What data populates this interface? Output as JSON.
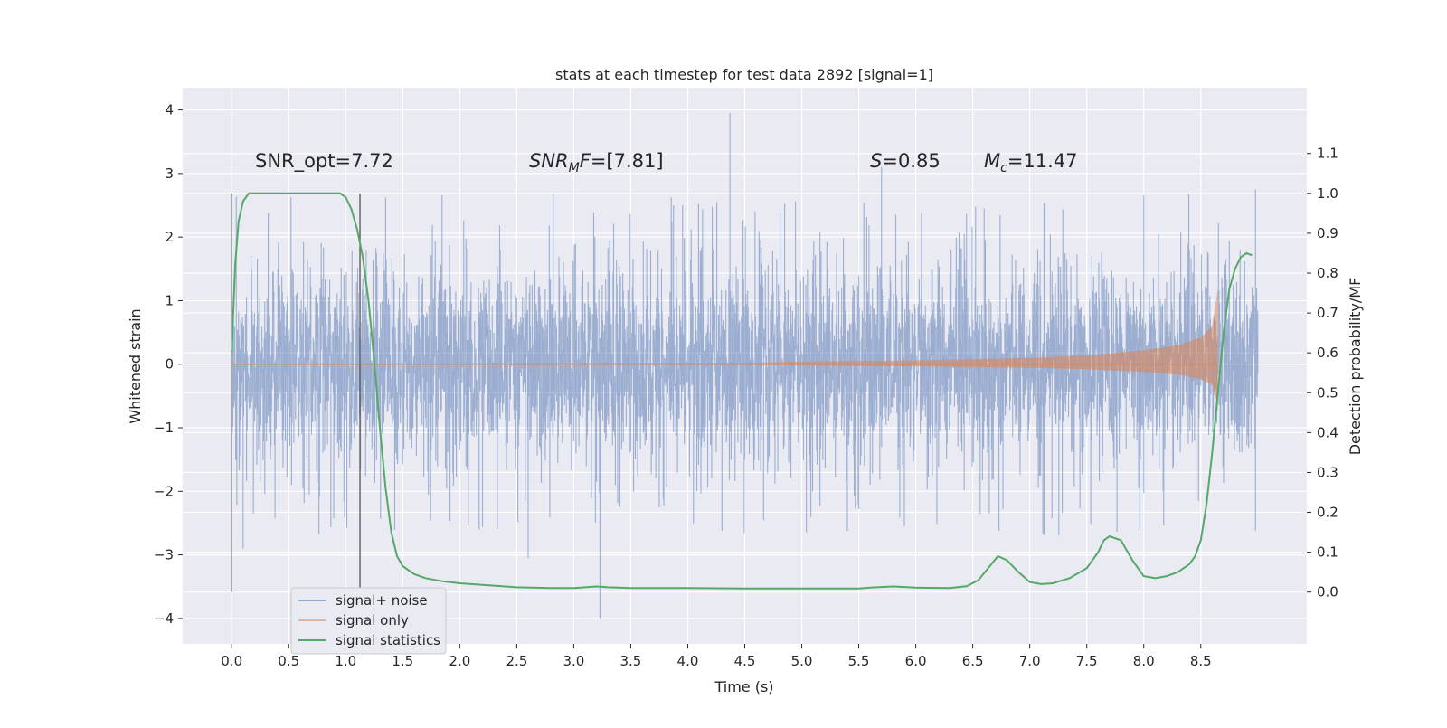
{
  "chart_data": {
    "type": "line",
    "title": "stats at each timestep for test data 2892 [signal=1]",
    "xlabel": "Time (s)",
    "ylabel": "Whitened strain",
    "y2label": "Detection probability/MF",
    "xlim": [
      -0.43,
      9.43
    ],
    "ylim": [
      -4.4,
      4.35
    ],
    "y2lim": [
      -0.13,
      1.265
    ],
    "xticks": [
      0.0,
      0.5,
      1.0,
      1.5,
      2.0,
      2.5,
      3.0,
      3.5,
      4.0,
      4.5,
      5.0,
      5.5,
      6.0,
      6.5,
      7.0,
      7.5,
      8.0,
      8.5
    ],
    "xtick_labels": [
      "0.0",
      "0.5",
      "1.0",
      "1.5",
      "2.0",
      "2.5",
      "3.0",
      "3.5",
      "4.0",
      "4.5",
      "5.0",
      "5.5",
      "6.0",
      "6.5",
      "7.0",
      "7.5",
      "8.0",
      "8.5"
    ],
    "yticks": [
      4,
      3,
      2,
      1,
      0,
      -1,
      -2,
      -3,
      -4
    ],
    "ytick_labels": [
      "4",
      "3",
      "2",
      "1",
      "0",
      "−1",
      "−2",
      "−3",
      "−4"
    ],
    "y2ticks": [
      1.1,
      1.0,
      0.9,
      0.8,
      0.7,
      0.6,
      0.5,
      0.4,
      0.3,
      0.2,
      0.1,
      0.0
    ],
    "y2tick_labels": [
      "1.1",
      "1.0",
      "0.9",
      "0.8",
      "0.7",
      "0.6",
      "0.5",
      "0.4",
      "0.3",
      "0.2",
      "0.1",
      "0.0"
    ],
    "grid": true,
    "legend_position": "lower-left",
    "vertical_markers_x": [
      0.0,
      1.125
    ],
    "annotations": [
      {
        "text": "SNR_opt=7.72",
        "x": 0.2,
        "y": 3.2
      },
      {
        "text": "SNR_MF=[7.81]",
        "x": 2.6,
        "y": 3.2
      },
      {
        "text": "S=0.85",
        "x": 5.6,
        "y": 3.2
      },
      {
        "text": "M_c=11.47",
        "x": 6.6,
        "y": 3.2
      }
    ],
    "series": [
      {
        "name": "signal+ noise",
        "color": "#4c72b0",
        "description_of_shape": "dense noise filling about -2.2 to 2.2 with spikes",
        "x_range": [
          0.0,
          9.0
        ],
        "peak_spikes": [
          {
            "x": 4.37,
            "y": 3.95
          },
          {
            "x": 3.23,
            "y": -4.0
          },
          {
            "x": 2.6,
            "y": -3.05
          },
          {
            "x": 0.1,
            "y": -2.9
          },
          {
            "x": 5.7,
            "y": 3.1
          },
          {
            "x": 8.98,
            "y": 2.75
          }
        ]
      },
      {
        "name": "signal only",
        "color": "#dd8452",
        "envelope_x": [
          0.0,
          4.5,
          5.0,
          6.0,
          7.0,
          7.5,
          8.0,
          8.3,
          8.5,
          8.6,
          8.65
        ],
        "envelope_y": [
          0.01,
          0.02,
          0.04,
          0.06,
          0.1,
          0.14,
          0.22,
          0.3,
          0.42,
          0.6,
          1.2
        ],
        "x_range": [
          0.0,
          8.65
        ]
      },
      {
        "name": "signal statistics",
        "color": "#55a868",
        "axis": "right",
        "x": [
          0.0,
          0.03,
          0.06,
          0.1,
          0.15,
          0.25,
          0.4,
          0.6,
          0.8,
          0.95,
          1.0,
          1.05,
          1.1,
          1.15,
          1.2,
          1.25,
          1.3,
          1.35,
          1.4,
          1.45,
          1.5,
          1.6,
          1.7,
          1.85,
          2.0,
          2.2,
          2.5,
          2.8,
          3.0,
          3.1,
          3.2,
          3.3,
          3.5,
          4.0,
          4.5,
          5.0,
          5.5,
          5.6,
          5.8,
          6.0,
          6.3,
          6.45,
          6.55,
          6.65,
          6.72,
          6.8,
          6.9,
          7.0,
          7.1,
          7.2,
          7.35,
          7.5,
          7.6,
          7.65,
          7.7,
          7.8,
          7.9,
          8.0,
          8.1,
          8.2,
          8.3,
          8.4,
          8.45,
          8.5,
          8.55,
          8.6,
          8.65,
          8.7,
          8.75,
          8.8,
          8.85,
          8.9,
          8.95
        ],
        "y": [
          0.6,
          0.82,
          0.93,
          0.98,
          1.0,
          1.0,
          1.0,
          1.0,
          1.0,
          1.0,
          0.99,
          0.96,
          0.91,
          0.84,
          0.73,
          0.58,
          0.41,
          0.26,
          0.15,
          0.09,
          0.065,
          0.045,
          0.035,
          0.027,
          0.022,
          0.018,
          0.012,
          0.01,
          0.01,
          0.012,
          0.014,
          0.012,
          0.01,
          0.01,
          0.009,
          0.009,
          0.009,
          0.011,
          0.014,
          0.011,
          0.01,
          0.015,
          0.03,
          0.065,
          0.09,
          0.08,
          0.05,
          0.025,
          0.02,
          0.022,
          0.035,
          0.06,
          0.1,
          0.13,
          0.14,
          0.13,
          0.08,
          0.04,
          0.035,
          0.04,
          0.05,
          0.07,
          0.09,
          0.13,
          0.22,
          0.35,
          0.5,
          0.65,
          0.76,
          0.81,
          0.84,
          0.85,
          0.845
        ]
      }
    ]
  }
}
